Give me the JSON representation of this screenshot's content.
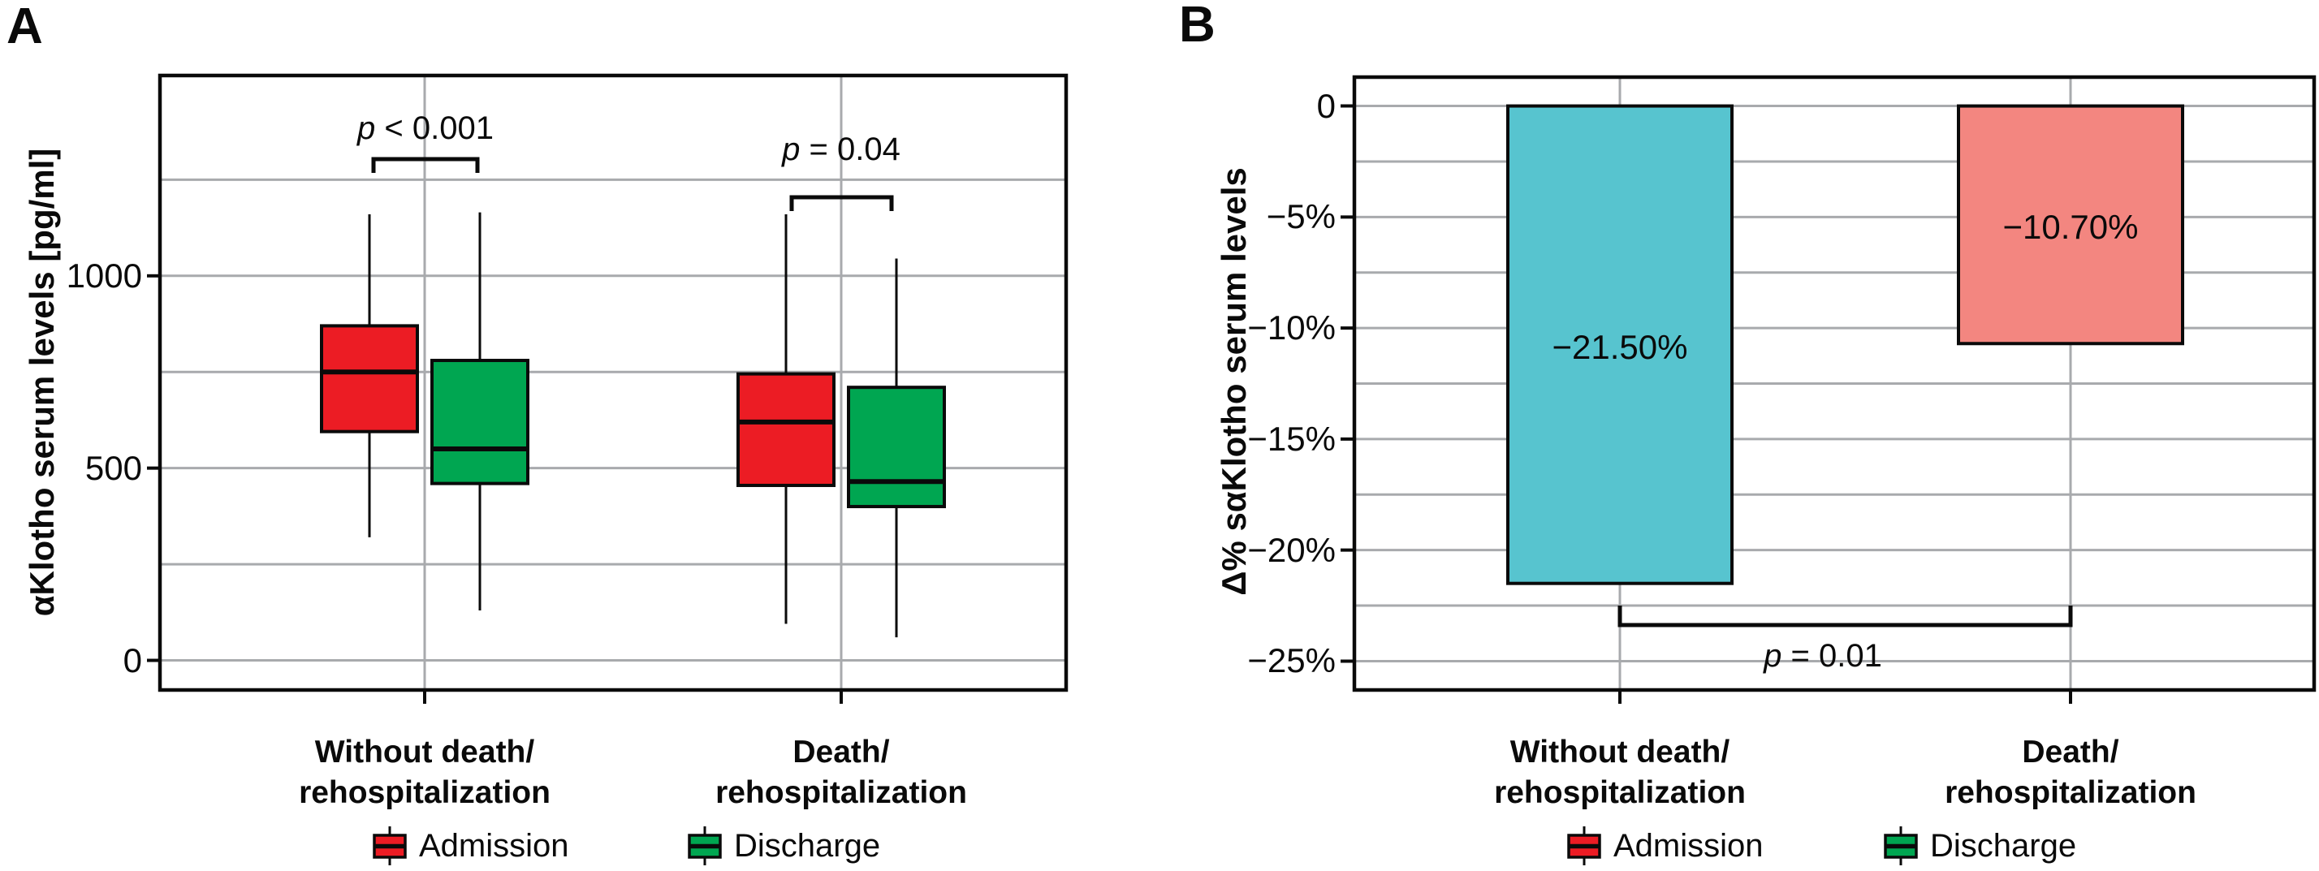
{
  "colors": {
    "admission_red": "#EC1C24",
    "discharge_green": "#00A651",
    "bar_cyan": "#57C4CF",
    "bar_salmon": "#F38680",
    "gridline_gray": "#A8AAAD",
    "axis_black": "#0a0a0a"
  },
  "panel_a": {
    "letter": "A",
    "y_axis_title": "αKlotho serum levels [pg/ml]",
    "x_categories": [
      {
        "line1": "Without death/",
        "line2": "rehospitalization"
      },
      {
        "line1": "Death/",
        "line2": "rehospitalization"
      }
    ],
    "annotations": [
      {
        "symbol": "p",
        "text": " < 0.001"
      },
      {
        "symbol": "p",
        "text": " = 0.04"
      }
    ],
    "legend": [
      {
        "label": "Admission",
        "color": "#EC1C24"
      },
      {
        "label": "Discharge",
        "color": "#00A651"
      }
    ]
  },
  "panel_b": {
    "letter": "B",
    "y_axis_title": "Δ% sαKlotho serum levels",
    "x_categories": [
      {
        "line1": "Without death/",
        "line2": "rehospitalization"
      },
      {
        "line1": "Death/",
        "line2": "rehospitalization"
      }
    ],
    "annotation": {
      "symbol": "p",
      "text": " = 0.01"
    },
    "bar_labels": [
      "−21.50%",
      "−10.70%"
    ],
    "legend": [
      {
        "label": "Admission",
        "color": "#EC1C24"
      },
      {
        "label": "Discharge",
        "color": "#00A651"
      }
    ]
  },
  "chart_data": [
    {
      "id": "A",
      "type": "boxplot",
      "title": "",
      "ylabel": "αKlotho serum levels [pg/ml]",
      "ylim": [
        -77,
        1521
      ],
      "ytick_values": [
        0,
        500,
        1000
      ],
      "ytick_labels": [
        "0",
        "500",
        "1000"
      ],
      "gridline_values": [
        0,
        250,
        500,
        750,
        1000,
        1250
      ],
      "grid": true,
      "categories": [
        "Without death/rehospitalization",
        "Death/rehospitalization"
      ],
      "series": [
        {
          "name": "Admission",
          "color": "#EC1C24",
          "boxes": [
            {
              "whisker_low": 320,
              "q1": 595,
              "median": 750,
              "q3": 870,
              "whisker_high": 1160
            },
            {
              "whisker_low": 95,
              "q1": 455,
              "median": 620,
              "q3": 745,
              "whisker_high": 1160
            }
          ]
        },
        {
          "name": "Discharge",
          "color": "#00A651",
          "boxes": [
            {
              "whisker_low": 130,
              "q1": 460,
              "median": 550,
              "q3": 780,
              "whisker_high": 1165
            },
            {
              "whisker_low": 60,
              "q1": 400,
              "median": 465,
              "q3": 710,
              "whisker_high": 1045
            }
          ]
        }
      ],
      "annotations": [
        {
          "text": "p < 0.001",
          "category": "Without death/rehospitalization",
          "compares": [
            "Admission",
            "Discharge"
          ]
        },
        {
          "text": "p = 0.04",
          "category": "Death/rehospitalization",
          "compares": [
            "Admission",
            "Discharge"
          ]
        }
      ],
      "legend_position": "bottom"
    },
    {
      "id": "B",
      "type": "bar",
      "title": "",
      "ylabel": "Δ% sαKlotho serum levels",
      "ylim": [
        -26.3,
        1.3
      ],
      "ytick_values": [
        0,
        -5,
        -10,
        -15,
        -20,
        -25
      ],
      "ytick_labels": [
        "0",
        "−5%",
        "−10%",
        "−15%",
        "−20%",
        "−25%"
      ],
      "gridline_step": 2.5,
      "grid": true,
      "categories": [
        "Without death/rehospitalization",
        "Death/rehospitalization"
      ],
      "values": [
        -21.5,
        -10.7
      ],
      "bar_labels": [
        "−21.50%",
        "−10.70%"
      ],
      "bar_colors": [
        "#57C4CF",
        "#F38680"
      ],
      "annotations": [
        {
          "text": "p = 0.01",
          "between_categories": [
            0,
            1
          ]
        }
      ],
      "legend_position": "bottom"
    }
  ]
}
